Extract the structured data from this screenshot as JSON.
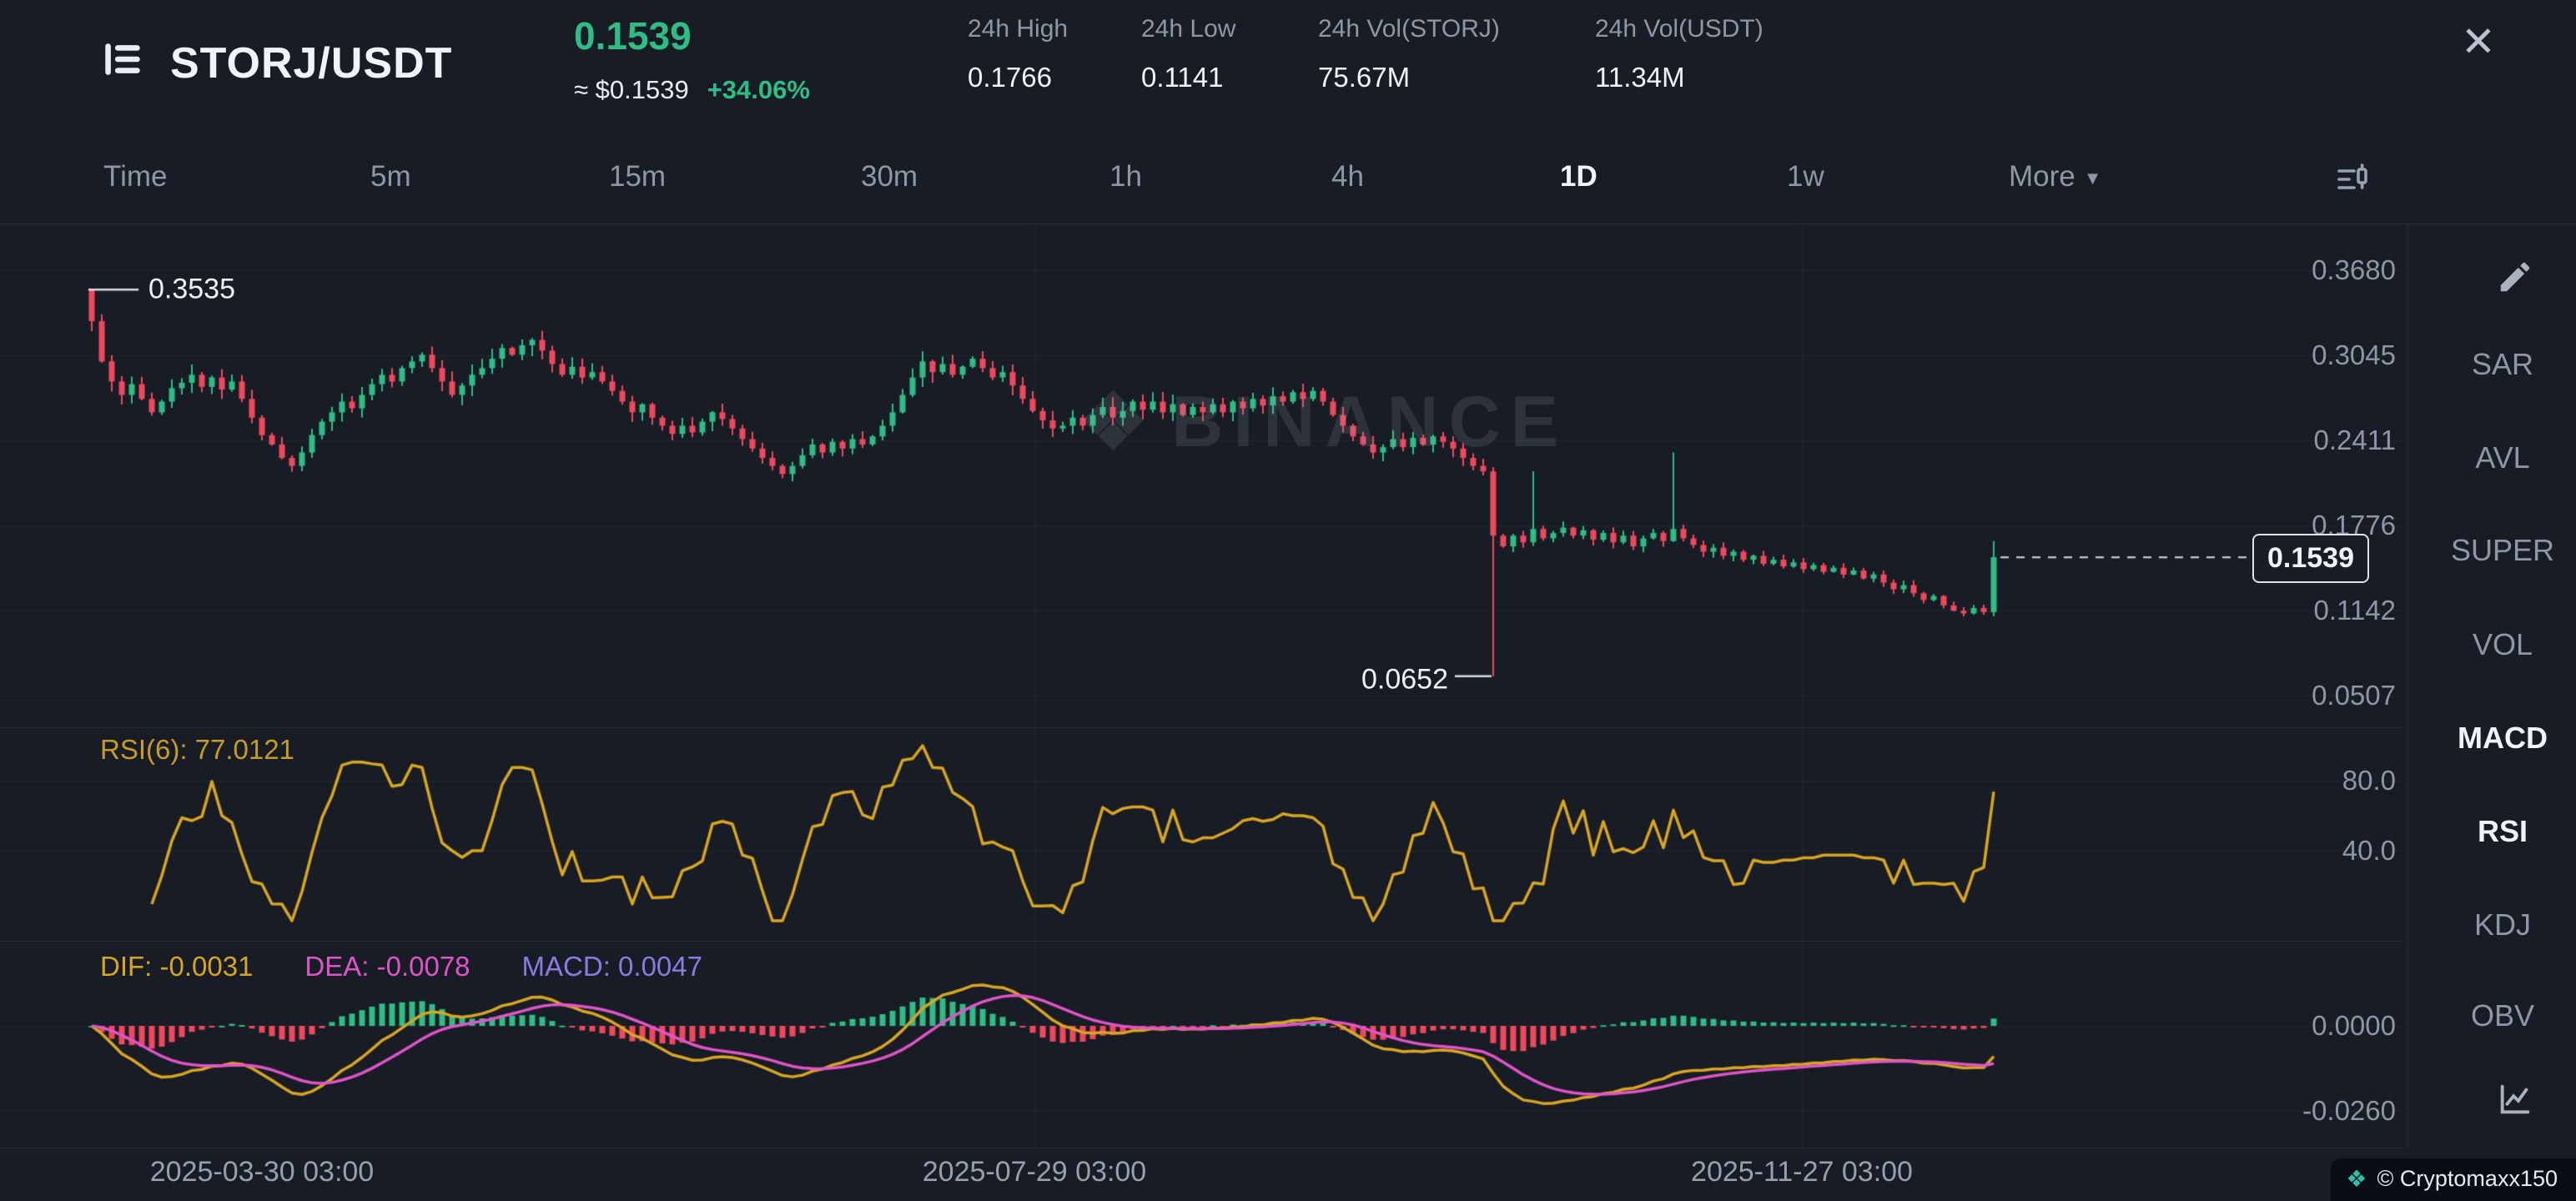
{
  "header": {
    "symbol": "STORJ/USDT",
    "price": "0.1539",
    "price_approx": "≈ $0.1539",
    "change": "+34.06%",
    "close_glyph": "✕",
    "stats": [
      {
        "label": "24h High",
        "value": "0.1766"
      },
      {
        "label": "24h Low",
        "value": "0.1141"
      },
      {
        "label": "24h Vol(STORJ)",
        "value": "75.67M"
      },
      {
        "label": "24h Vol(USDT)",
        "value": "11.34M"
      }
    ]
  },
  "toolbar": {
    "timeframes": [
      "Time",
      "5m",
      "15m",
      "30m",
      "1h",
      "4h",
      "1D",
      "1w"
    ],
    "active": "1D",
    "more_label": "More",
    "caret_glyph": "▼"
  },
  "sidebar": {
    "items": [
      "SAR",
      "AVL",
      "SUPER",
      "VOL",
      "MACD",
      "RSI",
      "KDJ",
      "OBV"
    ],
    "active": [
      "MACD",
      "RSI"
    ]
  },
  "panels": {
    "rsi_label": "RSI(6): 77.0121",
    "dif_label": "DIF: -0.0031",
    "dea_label": "DEA: -0.0078",
    "macd_label": "MACD: 0.0047"
  },
  "annotations": {
    "first_high": "0.3535",
    "crash_low": "0.0652",
    "last_price": "0.1539"
  },
  "watermark": {
    "icon": "❖",
    "text": "BINANCE"
  },
  "attribution": {
    "icon": "❖",
    "text": "© Cryptomaxx150"
  },
  "colors": {
    "green": "#2ebd85",
    "red": "#f0475d",
    "yellow": "#d9a521",
    "pink": "#e054c8",
    "purple": "#8d7ae0",
    "grid": "rgba(255,255,255,0.045)",
    "separator": "rgba(255,255,255,0.08)",
    "axis_text": "#8d97a5",
    "white_line": "rgba(236,241,246,0.9)"
  },
  "chart_data": {
    "type": "candlestick",
    "title": "STORJ/USDT 1D",
    "interval": "1D",
    "ylim": [
      0.0507,
      0.368
    ],
    "first_open": 0.3535,
    "closes": [
      0.33,
      0.3,
      0.285,
      0.275,
      0.283,
      0.272,
      0.262,
      0.27,
      0.28,
      0.284,
      0.29,
      0.281,
      0.288,
      0.279,
      0.285,
      0.272,
      0.258,
      0.245,
      0.238,
      0.228,
      0.222,
      0.232,
      0.245,
      0.255,
      0.262,
      0.27,
      0.265,
      0.275,
      0.283,
      0.29,
      0.285,
      0.295,
      0.3,
      0.305,
      0.295,
      0.285,
      0.275,
      0.282,
      0.29,
      0.295,
      0.302,
      0.31,
      0.305,
      0.312,
      0.316,
      0.308,
      0.298,
      0.29,
      0.296,
      0.288,
      0.292,
      0.285,
      0.278,
      0.27,
      0.262,
      0.268,
      0.258,
      0.252,
      0.246,
      0.252,
      0.247,
      0.255,
      0.262,
      0.257,
      0.25,
      0.242,
      0.235,
      0.228,
      0.222,
      0.216,
      0.222,
      0.23,
      0.238,
      0.232,
      0.24,
      0.235,
      0.242,
      0.238,
      0.244,
      0.252,
      0.262,
      0.275,
      0.288,
      0.3,
      0.292,
      0.298,
      0.29,
      0.296,
      0.302,
      0.295,
      0.288,
      0.292,
      0.282,
      0.272,
      0.263,
      0.256,
      0.25,
      0.252,
      0.258,
      0.252,
      0.26,
      0.266,
      0.258,
      0.263,
      0.27,
      0.264,
      0.27,
      0.262,
      0.268,
      0.26,
      0.266,
      0.262,
      0.268,
      0.262,
      0.27,
      0.265,
      0.272,
      0.267,
      0.274,
      0.27,
      0.277,
      0.272,
      0.278,
      0.27,
      0.26,
      0.252,
      0.244,
      0.238,
      0.232,
      0.236,
      0.242,
      0.236,
      0.243,
      0.238,
      0.244,
      0.24,
      0.235,
      0.228,
      0.222,
      0.218,
      0.17,
      0.162,
      0.17,
      0.165,
      0.175,
      0.168,
      0.172,
      0.176,
      0.17,
      0.174,
      0.167,
      0.172,
      0.165,
      0.17,
      0.162,
      0.168,
      0.172,
      0.166,
      0.175,
      0.168,
      0.163,
      0.158,
      0.161,
      0.155,
      0.158,
      0.152,
      0.155,
      0.149,
      0.152,
      0.147,
      0.15,
      0.145,
      0.148,
      0.143,
      0.146,
      0.141,
      0.144,
      0.138,
      0.141,
      0.135,
      0.13,
      0.133,
      0.127,
      0.122,
      0.125,
      0.118,
      0.114,
      0.112,
      0.116,
      0.113,
      0.1539
    ],
    "overrides": {
      "0": {
        "high": 0.3535
      },
      "140": {
        "low": 0.0652
      },
      "144": {
        "high": 0.218
      },
      "158": {
        "high": 0.232
      },
      "190": {
        "high": 0.166,
        "low": 0.11
      }
    },
    "last_price": 0.1539,
    "y_ticks": [
      0.368,
      0.3045,
      0.2411,
      0.1776,
      0.1142,
      0.0507
    ],
    "x_labels": [
      "2025-03-30 03:00",
      "2025-07-29 03:00",
      "2025-11-27 03:00"
    ],
    "indicators": {
      "rsi": {
        "period": 6,
        "last": 77.0121,
        "ticks": [
          80.0,
          40.0
        ]
      },
      "macd": {
        "dif": -0.0031,
        "dea": -0.0078,
        "hist": 0.0047,
        "ticks": [
          0.0,
          -0.026
        ]
      }
    }
  }
}
